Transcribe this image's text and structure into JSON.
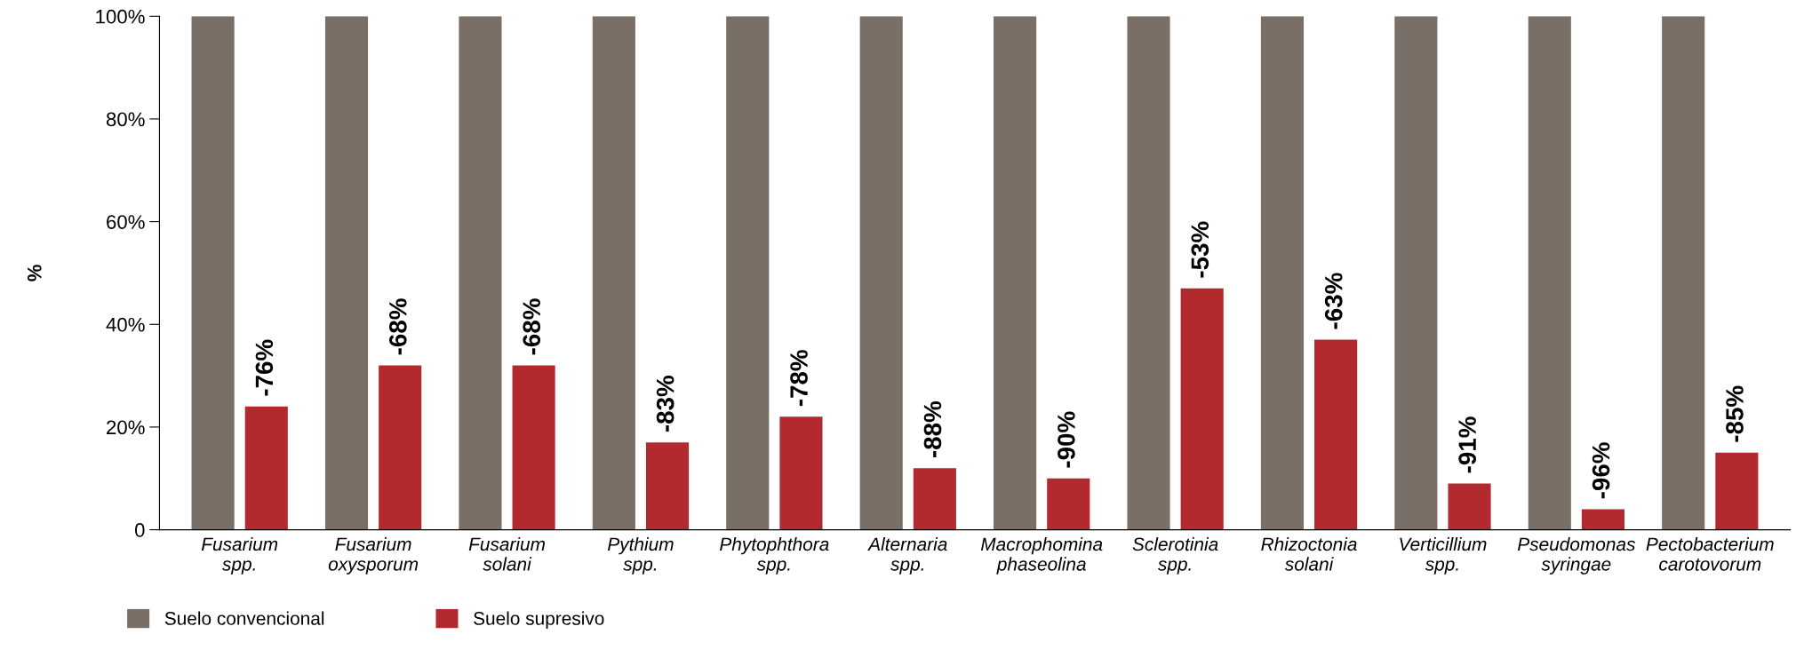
{
  "chart_data": {
    "type": "bar",
    "ylabel": "%",
    "categories": [
      "Fusarium\nspp.",
      "Fusarium\noxysporum",
      "Fusarium\nsolani",
      "Pythium\nspp.",
      "Phytophthora\nspp.",
      "Alternaria\nspp.",
      "Macrophomina\nphaseolina",
      "Sclerotinia\nspp.",
      "Rhizoctonia\nsolani",
      "Verticillium\nspp.",
      "Pseudomonas\nsyringae",
      "Pectobacterium\ncarotovorum"
    ],
    "series": [
      {
        "name": "Suelo convencional",
        "color": "#7a6f66",
        "values": [
          100,
          100,
          100,
          100,
          100,
          100,
          100,
          100,
          100,
          100,
          100,
          100
        ]
      },
      {
        "name": "Suelo supresivo",
        "color": "#b22a2e",
        "values": [
          24,
          32,
          32,
          17,
          22,
          12,
          10,
          47,
          37,
          9,
          4,
          15
        ]
      }
    ],
    "annotations": [
      "-76%",
      "-68%",
      "-68%",
      "-83%",
      "-78%",
      "-88%",
      "-90%",
      "-53%",
      "-63%",
      "-91%",
      "-96%",
      "-85%"
    ],
    "ylim": [
      0,
      100
    ],
    "yticks": [
      0,
      {
        "value": 20,
        "label": "20%"
      },
      {
        "value": 40,
        "label": "40%"
      },
      {
        "value": 60,
        "label": "60%"
      },
      {
        "value": 80,
        "label": "80%"
      },
      {
        "value": 100,
        "label": "100%"
      }
    ],
    "grid": false,
    "legend": "bottom left"
  }
}
